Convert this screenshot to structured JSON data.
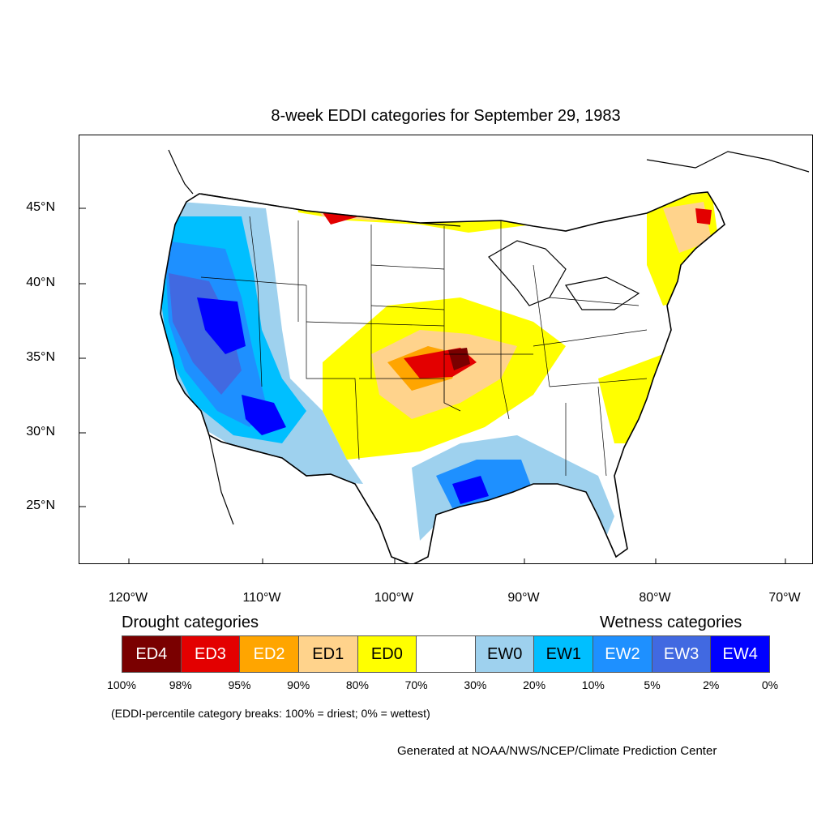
{
  "title": "8-week EDDI categories for September 29, 1983",
  "axes": {
    "lat_ticks": [
      "45°N",
      "40°N",
      "35°N",
      "30°N",
      "25°N"
    ],
    "lon_ticks": [
      "120°W",
      "110°W",
      "100°W",
      "90°W",
      "80°W",
      "70°W"
    ]
  },
  "map": {
    "extent": {
      "lon_min": -124.0,
      "lon_max": -68.5,
      "lat_min": 21.0,
      "lat_max": 49.5
    },
    "outline_color": "#000000"
  },
  "legend": {
    "drought_heading": "Drought categories",
    "wetness_heading": "Wetness categories",
    "categories": [
      {
        "label": "ED4",
        "color": "#7a0000",
        "text_color": "#ffffff"
      },
      {
        "label": "ED3",
        "color": "#e30000",
        "text_color": "#ffffff"
      },
      {
        "label": "ED2",
        "color": "#ffa500",
        "text_color": "#ffffff"
      },
      {
        "label": "ED1",
        "color": "#ffd38c",
        "text_color": "#000000"
      },
      {
        "label": "ED0",
        "color": "#ffff00",
        "text_color": "#000000"
      },
      {
        "label": "",
        "color": "#ffffff",
        "text_color": "#000000"
      },
      {
        "label": "EW0",
        "color": "#9ed1ee",
        "text_color": "#000000"
      },
      {
        "label": "EW1",
        "color": "#00bfff",
        "text_color": "#000000"
      },
      {
        "label": "EW2",
        "color": "#1e90ff",
        "text_color": "#ffffff"
      },
      {
        "label": "EW3",
        "color": "#4169e1",
        "text_color": "#ffffff"
      },
      {
        "label": "EW4",
        "color": "#0000ff",
        "text_color": "#ffffff"
      }
    ],
    "breaks": [
      "100%",
      "98%",
      "95%",
      "90%",
      "80%",
      "70%",
      "30%",
      "20%",
      "10%",
      "5%",
      "2%",
      "0%"
    ],
    "note": "(EDDI-percentile category breaks: 100% = driest; 0% = wettest)"
  },
  "credit": "Generated at NOAA/NWS/NCEP/Climate Prediction Center"
}
